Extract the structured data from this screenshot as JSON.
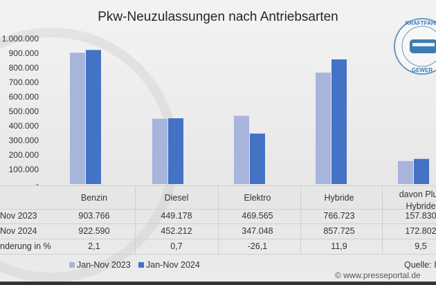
{
  "chart_data": {
    "type": "bar",
    "title": "Pkw-Neuzulassungen nach Antriebsarten",
    "categories": [
      "Benzin",
      "Diesel",
      "Elektro",
      "Hybride",
      "davon Plug-in-Hybride"
    ],
    "category_labels": [
      [
        "Benzin"
      ],
      [
        "Diesel"
      ],
      [
        "Elektro"
      ],
      [
        "Hybride"
      ],
      [
        "davon Plug",
        "Hybride"
      ]
    ],
    "series": [
      {
        "name": "Jan-Nov 2023",
        "values": [
          903766,
          449178,
          469565,
          766723,
          157830
        ],
        "color": "#a7b4dc"
      },
      {
        "name": "Jan-Nov 2024",
        "values": [
          922590,
          452212,
          347048,
          857725,
          172802
        ],
        "color": "#4472c4"
      }
    ],
    "ylim": [
      0,
      1000000
    ],
    "yticks": [
      "-",
      "100.000",
      "200.000",
      "300.000",
      "400.000",
      "500.000",
      "600.000",
      "700.000",
      "800.000",
      "900.000",
      "1.000.000"
    ],
    "grid": false,
    "legend": "bottom",
    "table": {
      "row_labels": [
        "Nov 2023",
        "Nov 2024",
        "nderung in %"
      ],
      "rows": [
        [
          "903.766",
          "449.178",
          "469.565",
          "766.723",
          "157.830"
        ],
        [
          "922.590",
          "452.212",
          "347.048",
          "857.725",
          "172.802"
        ],
        [
          "2,1",
          "0,7",
          "-26,1",
          "11,9",
          "9,5"
        ]
      ]
    }
  },
  "source": "Quelle: I",
  "credit": "© www.presseportal.de",
  "logo": {
    "text_top": "KRAFTFAHR",
    "text_bottom": "GEWER"
  }
}
